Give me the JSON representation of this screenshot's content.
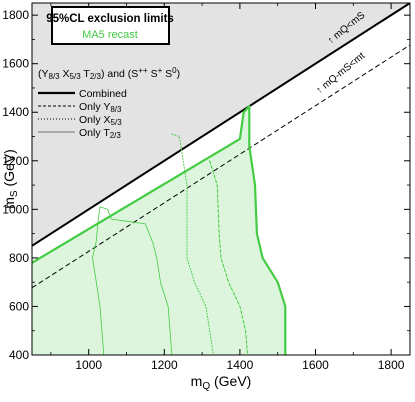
{
  "chart_data": {
    "type": "area",
    "title": "95%CL exclusion limits",
    "subtitle": "MA5 recast",
    "model_label": "(Y8/3 X5/3 T2/3) and (S++ S+ S0)",
    "xlabel": "mQ (GeV)",
    "ylabel": "mS (GeV)",
    "xlim": [
      850,
      1850
    ],
    "ylim": [
      400,
      1850
    ],
    "xticks": [
      "1000",
      "1200",
      "1400",
      "1600",
      "1800"
    ],
    "yticks": [
      "400",
      "600",
      "800",
      "1000",
      "1200",
      "1400",
      "1600",
      "1800"
    ],
    "grid": false,
    "legend_position": "top-left",
    "colors": {
      "accent": "#44cc44",
      "fill": "#ddf5dd",
      "forbidden": "#e3e3e3",
      "frame": "#000000"
    },
    "diagonals": [
      {
        "label": "↑ mQ<mS",
        "points": [
          [
            850,
            850
          ],
          [
            1850,
            1850
          ]
        ],
        "style": "solid"
      },
      {
        "label": "↑ mQ-mS<mt",
        "points": [
          [
            850,
            677
          ],
          [
            1850,
            1677
          ]
        ],
        "style": "dashed"
      }
    ],
    "series": [
      {
        "name": "Combined",
        "style": "thick-green",
        "legend_style": "solid-thick",
        "points": [
          [
            850,
            780
          ],
          [
            1400,
            1290
          ],
          [
            1410,
            1400
          ],
          [
            1425,
            1425
          ],
          [
            1425,
            1260
          ],
          [
            1440,
            1100
          ],
          [
            1445,
            900
          ],
          [
            1460,
            800
          ],
          [
            1500,
            700
          ],
          [
            1520,
            600
          ],
          [
            1520,
            400
          ]
        ]
      },
      {
        "name": "Only Y8/3",
        "style": "dashed",
        "legend_style": "dashed",
        "points": [
          [
            1320,
            1200
          ],
          [
            1340,
            1100
          ],
          [
            1345,
            900
          ],
          [
            1350,
            800
          ],
          [
            1370,
            700
          ],
          [
            1400,
            600
          ],
          [
            1415,
            500
          ],
          [
            1420,
            400
          ]
        ]
      },
      {
        "name": "Only X5/3",
        "style": "dotted",
        "legend_style": "dotted",
        "points": [
          [
            1220,
            1310
          ],
          [
            1240,
            1300
          ],
          [
            1250,
            1200
          ],
          [
            1260,
            1100
          ],
          [
            1260,
            800
          ],
          [
            1280,
            700
          ],
          [
            1310,
            600
          ],
          [
            1320,
            500
          ],
          [
            1330,
            400
          ]
        ]
      },
      {
        "name": "Only T2/3",
        "style": "solid-thin",
        "legend_style": "thin",
        "points": [
          [
            1030,
            1010
          ],
          [
            1050,
            1000
          ],
          [
            1060,
            960
          ],
          [
            1150,
            940
          ],
          [
            1170,
            860
          ],
          [
            1180,
            800
          ],
          [
            1190,
            700
          ],
          [
            1210,
            600
          ],
          [
            1220,
            400
          ]
        ]
      },
      {
        "name": "",
        "style": "solid-thin",
        "points": [
          [
            1030,
            1010
          ],
          [
            1025,
            950
          ],
          [
            1020,
            870
          ],
          [
            1010,
            800
          ],
          [
            1020,
            700
          ],
          [
            1030,
            600
          ],
          [
            1035,
            500
          ],
          [
            1040,
            400
          ]
        ]
      }
    ]
  }
}
